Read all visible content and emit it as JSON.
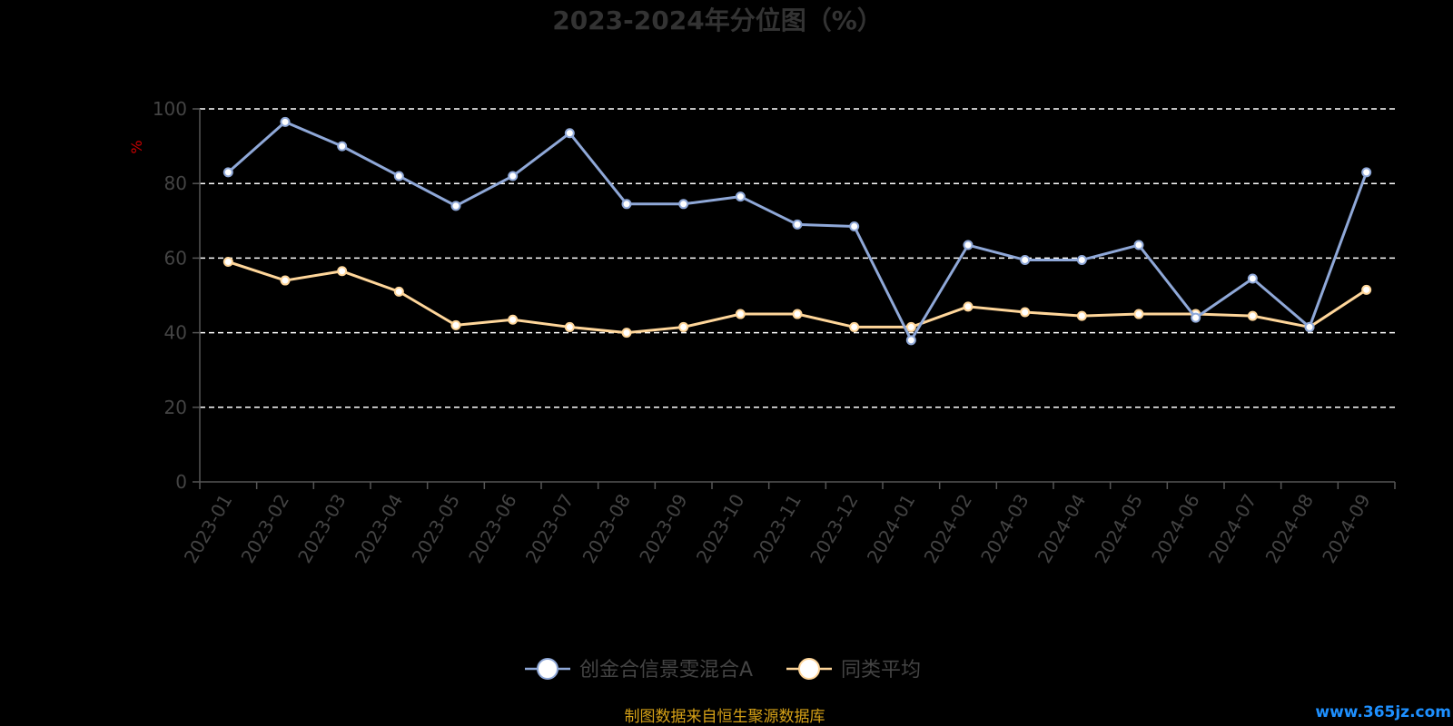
{
  "chart_data": {
    "type": "line",
    "title": "2023-2024年分位图（%）",
    "ylabel": "%",
    "ylim": [
      0,
      100
    ],
    "yticks": [
      0,
      20,
      40,
      60,
      80,
      100
    ],
    "grid": true,
    "legend_position": "bottom",
    "categories": [
      "2023-01",
      "2023-02",
      "2023-03",
      "2023-04",
      "2023-05",
      "2023-06",
      "2023-07",
      "2023-08",
      "2023-09",
      "2023-10",
      "2023-11",
      "2023-12",
      "2024-01",
      "2024-02",
      "2024-03",
      "2024-04",
      "2024-05",
      "2024-06",
      "2024-07",
      "2024-08",
      "2024-09"
    ],
    "series": [
      {
        "name": "创金合信景雯混合A",
        "color": "#8fa8d8",
        "values": [
          83,
          96.5,
          90,
          82,
          74,
          82,
          93.5,
          74.5,
          74.5,
          76.5,
          69,
          68.5,
          38,
          63.5,
          59.5,
          59.5,
          63.5,
          44,
          54.5,
          41.5,
          83
        ]
      },
      {
        "name": "同类平均",
        "color": "#ffd69a",
        "values": [
          59,
          54,
          56.5,
          51,
          42,
          43.5,
          41.5,
          40,
          41.5,
          45,
          45,
          41.5,
          41.5,
          47,
          45.5,
          44.5,
          45,
          45,
          44.5,
          41.5,
          51.5
        ]
      }
    ]
  },
  "footer": {
    "source": "制图数据来自恒生聚源数据库",
    "watermark": "www.365jz.com"
  },
  "colors": {
    "background": "#000000",
    "grid": "#ffffff",
    "axis": "#555555"
  }
}
